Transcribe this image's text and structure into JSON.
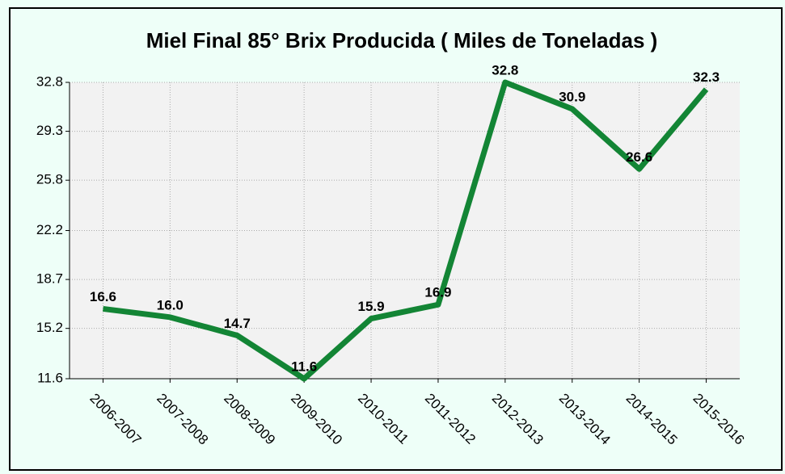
{
  "chart_data": {
    "type": "line",
    "title": "Miel Final 85° Brix Producida ( Miles de Toneladas )",
    "categories": [
      "2006-2007",
      "2007-2008",
      "2008-2009",
      "2009-2010",
      "2010-2011",
      "2011-2012",
      "2012-2013",
      "2013-2014",
      "2014-2015",
      "2015-2016"
    ],
    "series": [
      {
        "color": "#138535",
        "values": [
          16.6,
          16.0,
          14.7,
          11.6,
          15.9,
          16.9,
          32.8,
          30.9,
          26.6,
          32.3
        ],
        "value_labels": [
          "16.6",
          "16.0",
          "14.7",
          "11.6",
          "15.9",
          "16.9",
          "32.8",
          "30.9",
          "26.6",
          "32.3"
        ]
      }
    ],
    "ylim": [
      11.6,
      32.8
    ],
    "yticks": [
      11.6,
      15.2,
      18.7,
      22.2,
      25.8,
      29.3,
      32.8
    ],
    "grid": true
  }
}
